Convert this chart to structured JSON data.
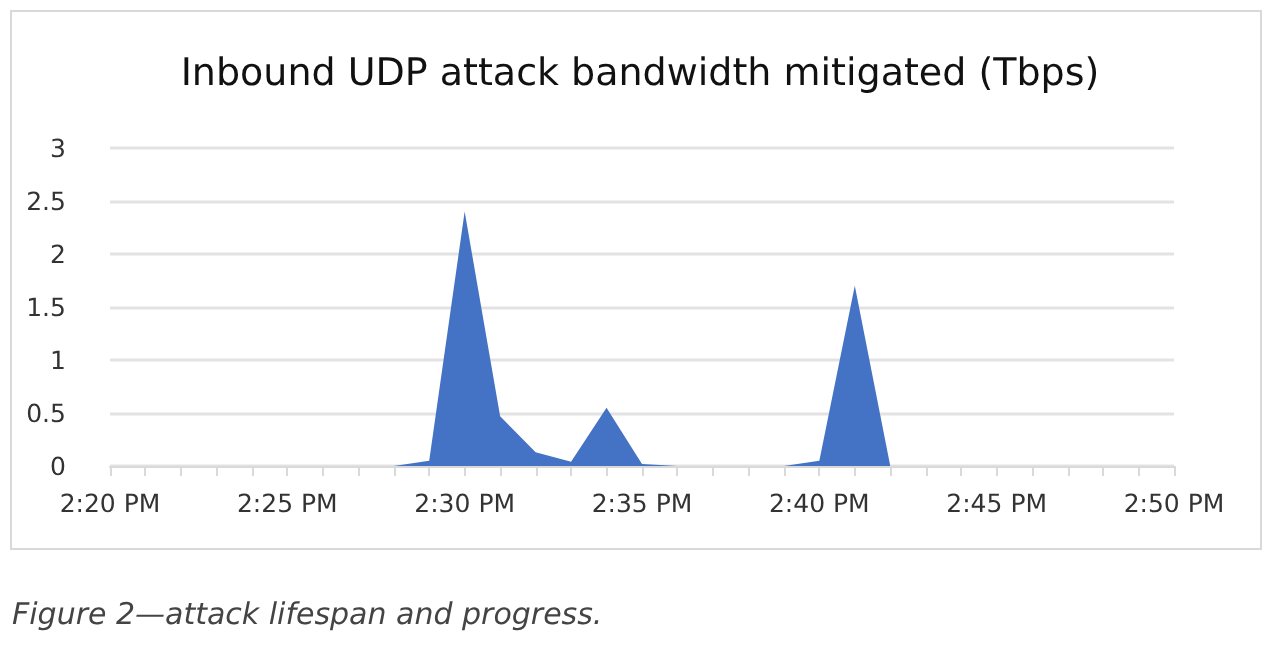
{
  "chart_data": {
    "type": "area",
    "title": "Inbound UDP attack bandwidth mitigated (Tbps)",
    "categories": [
      "2:20 PM",
      null,
      null,
      null,
      null,
      "2:25 PM",
      null,
      null,
      null,
      null,
      "2:30 PM",
      null,
      null,
      null,
      null,
      "2:35 PM",
      null,
      null,
      null,
      null,
      "2:40 PM",
      null,
      null,
      null,
      null,
      "2:45 PM",
      null,
      null,
      null,
      null,
      "2:50 PM"
    ],
    "series": [
      {
        "color": "#4472c4",
        "values": [
          null,
          null,
          null,
          null,
          null,
          null,
          null,
          null,
          0,
          0.05,
          2.4,
          0.47,
          0.13,
          0.04,
          0.55,
          0.02,
          0,
          0,
          0,
          0,
          0.05,
          1.7,
          0,
          null,
          null,
          null,
          null,
          null,
          null,
          null,
          null
        ]
      }
    ],
    "ylim": [
      0,
      3
    ],
    "yticks": [
      0,
      0.5,
      1,
      1.5,
      2,
      2.5,
      3
    ],
    "grid": "y",
    "marker": "none",
    "annotations": [
      "Figure 2—attack lifespan and progress."
    ]
  }
}
